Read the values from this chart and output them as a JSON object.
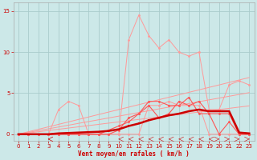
{
  "x": [
    0,
    1,
    2,
    3,
    4,
    5,
    6,
    7,
    8,
    9,
    10,
    11,
    12,
    13,
    14,
    15,
    16,
    17,
    18,
    19,
    20,
    21,
    22,
    23
  ],
  "rafales_high": [
    0,
    0,
    0,
    0,
    0,
    0,
    0,
    0,
    0,
    0,
    0,
    11.5,
    14.5,
    12,
    10.5,
    11.5,
    10,
    9.5,
    10,
    3,
    3,
    6,
    6.5,
    6
  ],
  "moyen_noisy": [
    0,
    0,
    0,
    0,
    3,
    4,
    3.5,
    0,
    0,
    0,
    0,
    0,
    0,
    3.5,
    3.5,
    4,
    3.5,
    3.5,
    3.5,
    0,
    0,
    0,
    0,
    0
  ],
  "linear1": [
    0,
    0.3,
    0.6,
    0.9,
    1.2,
    1.5,
    1.8,
    2.1,
    2.4,
    2.7,
    3.0,
    3.3,
    3.6,
    3.9,
    4.2,
    4.5,
    4.8,
    5.1,
    5.4,
    5.7,
    6.0,
    6.3,
    6.6,
    6.9
  ],
  "linear2": [
    0,
    0.22,
    0.44,
    0.66,
    0.88,
    1.1,
    1.32,
    1.54,
    1.76,
    1.98,
    2.2,
    2.42,
    2.64,
    2.86,
    3.08,
    3.3,
    3.52,
    3.74,
    3.96,
    4.18,
    4.4,
    4.62,
    4.84,
    5.06
  ],
  "linear3": [
    0,
    0.15,
    0.3,
    0.45,
    0.6,
    0.75,
    0.9,
    1.05,
    1.2,
    1.35,
    1.5,
    1.65,
    1.8,
    1.95,
    2.1,
    2.25,
    2.4,
    2.55,
    2.7,
    2.85,
    3.0,
    3.15,
    3.3,
    3.45
  ],
  "medium_line1": [
    0,
    0,
    0,
    0,
    0,
    0,
    0,
    0,
    0,
    0,
    0.5,
    2.0,
    2.5,
    4.0,
    4.0,
    3.5,
    3.5,
    4.5,
    2.5,
    2.5,
    0,
    1.5,
    0,
    0
  ],
  "medium_line2": [
    0,
    0,
    0,
    0,
    0,
    0,
    0,
    0,
    0,
    0.5,
    1.0,
    1.5,
    2.5,
    3.5,
    2.0,
    2.5,
    4.0,
    3.5,
    4.0,
    2.5,
    2.5,
    2.5,
    0,
    0
  ],
  "bold_line": [
    0,
    0,
    0,
    0,
    0.1,
    0.15,
    0.2,
    0.25,
    0.3,
    0.4,
    0.6,
    1.0,
    1.3,
    1.7,
    2.0,
    2.3,
    2.5,
    2.8,
    3.0,
    2.8,
    2.8,
    2.8,
    0.2,
    0.1
  ],
  "background_color": "#cce8e8",
  "grid_color": "#aacccc",
  "color_light": "#ff9999",
  "color_medium": "#ff5555",
  "color_dark": "#cc0000",
  "ylabel_ticks": [
    0,
    5,
    10,
    15
  ],
  "xlim": [
    -0.5,
    23.5
  ],
  "ylim": [
    -0.8,
    16
  ],
  "xlabel": "Vent moyen/en rafales ( km/h )"
}
